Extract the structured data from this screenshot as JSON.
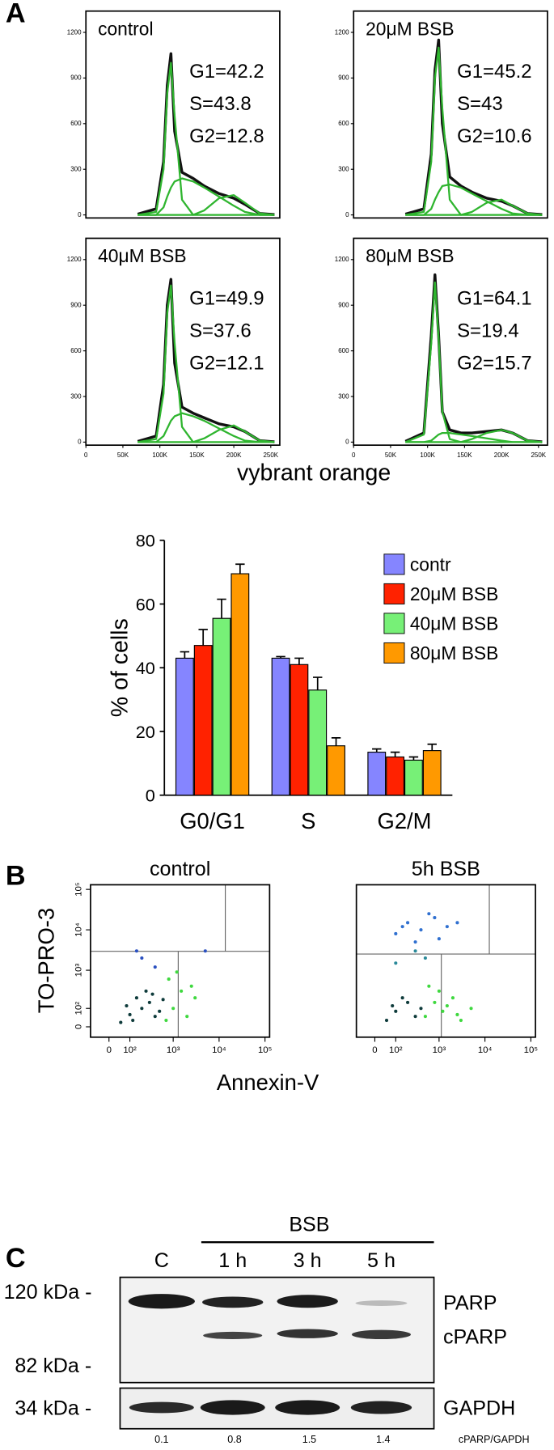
{
  "panels": [
    "A",
    "B",
    "C"
  ],
  "chart_data": [
    {
      "type": "line",
      "title": "control",
      "annotations": [
        "G1=42.2",
        "S=43.8",
        "G2=12.8"
      ],
      "x": [
        70000,
        95000,
        105000,
        110000,
        115000,
        120000,
        130000,
        145000,
        160000,
        180000,
        200000,
        215000,
        235000,
        255000
      ],
      "xlim": [
        0,
        262144
      ],
      "ylim": [
        -20,
        1340
      ],
      "yticks": [
        0,
        300,
        600,
        900,
        1200
      ],
      "series": [
        {
          "color": "#111111",
          "values": [
            5,
            40,
            350,
            850,
            1060,
            550,
            280,
            240,
            190,
            140,
            110,
            70,
            10,
            2
          ]
        },
        {
          "color": "#2fb52f",
          "values": [
            0,
            20,
            300,
            800,
            1000,
            650,
            100,
            0,
            0,
            0,
            0,
            0,
            0,
            0
          ]
        },
        {
          "color": "#2fb52f",
          "values": [
            0,
            0,
            50,
            120,
            180,
            220,
            240,
            220,
            180,
            120,
            60,
            20,
            0,
            0
          ]
        },
        {
          "color": "#2fb52f",
          "values": [
            0,
            0,
            0,
            0,
            0,
            0,
            0,
            0,
            30,
            110,
            130,
            80,
            10,
            0
          ]
        }
      ]
    },
    {
      "type": "line",
      "title": "20μM BSB",
      "annotations": [
        "G1=45.2",
        "S=43",
        "G2=10.6"
      ],
      "x": [
        70000,
        95000,
        105000,
        110000,
        115000,
        120000,
        130000,
        145000,
        160000,
        180000,
        200000,
        215000,
        235000,
        255000
      ],
      "xlim": [
        0,
        262144
      ],
      "ylim": [
        -20,
        1340
      ],
      "yticks": [
        0,
        300,
        600,
        900,
        1200
      ],
      "series": [
        {
          "color": "#111111",
          "values": [
            5,
            40,
            400,
            950,
            1150,
            600,
            250,
            190,
            150,
            110,
            90,
            60,
            10,
            2
          ]
        },
        {
          "color": "#2fb52f",
          "values": [
            0,
            20,
            350,
            900,
            1100,
            700,
            100,
            0,
            0,
            0,
            0,
            0,
            0,
            0
          ]
        },
        {
          "color": "#2fb52f",
          "values": [
            0,
            0,
            40,
            100,
            150,
            190,
            200,
            180,
            140,
            90,
            40,
            10,
            0,
            0
          ]
        },
        {
          "color": "#2fb52f",
          "values": [
            0,
            0,
            0,
            0,
            0,
            0,
            0,
            0,
            20,
            80,
            100,
            60,
            10,
            0
          ]
        }
      ]
    },
    {
      "type": "line",
      "title": "40μM BSB",
      "annotations": [
        "G1=49.9",
        "S=37.6",
        "G2=12.1"
      ],
      "xlabel": "vybrant orange",
      "x": [
        70000,
        95000,
        105000,
        110000,
        115000,
        120000,
        130000,
        145000,
        160000,
        180000,
        200000,
        215000,
        235000,
        255000
      ],
      "xlim": [
        0,
        262144
      ],
      "ylim": [
        -20,
        1340
      ],
      "yticks": [
        0,
        300,
        600,
        900,
        1200
      ],
      "xticks": [
        0,
        {
          "value": 50000,
          "label": "50K"
        },
        {
          "value": 100000,
          "label": "100K"
        },
        {
          "value": 150000,
          "label": "150K"
        },
        {
          "value": 200000,
          "label": "200K"
        },
        {
          "value": 250000,
          "label": "250K"
        }
      ],
      "series": [
        {
          "color": "#111111",
          "values": [
            5,
            40,
            380,
            900,
            1070,
            520,
            230,
            190,
            160,
            120,
            100,
            70,
            10,
            2
          ]
        },
        {
          "color": "#2fb52f",
          "values": [
            0,
            20,
            320,
            850,
            1030,
            650,
            100,
            0,
            0,
            0,
            0,
            0,
            0,
            0
          ]
        },
        {
          "color": "#2fb52f",
          "values": [
            0,
            0,
            40,
            90,
            140,
            170,
            190,
            170,
            140,
            90,
            40,
            10,
            0,
            0
          ]
        },
        {
          "color": "#2fb52f",
          "values": [
            0,
            0,
            0,
            0,
            0,
            0,
            0,
            0,
            25,
            80,
            110,
            70,
            10,
            0
          ]
        }
      ]
    },
    {
      "type": "line",
      "title": "80μM BSB",
      "annotations": [
        "G1=64.1",
        "S=19.4",
        "G2=15.7"
      ],
      "x": [
        70000,
        95000,
        105000,
        110000,
        115000,
        120000,
        130000,
        145000,
        160000,
        180000,
        200000,
        215000,
        235000,
        255000
      ],
      "xlim": [
        0,
        262144
      ],
      "ylim": [
        -20,
        1340
      ],
      "yticks": [
        0,
        300,
        600,
        900,
        1200
      ],
      "xticks": [
        0,
        {
          "value": 50000,
          "label": "50K"
        },
        {
          "value": 100000,
          "label": "100K"
        },
        {
          "value": 150000,
          "label": "150K"
        },
        {
          "value": 200000,
          "label": "200K"
        },
        {
          "value": 250000,
          "label": "250K"
        }
      ],
      "series": [
        {
          "color": "#111111",
          "values": [
            5,
            60,
            700,
            1100,
            700,
            200,
            80,
            60,
            60,
            70,
            80,
            60,
            10,
            2
          ]
        },
        {
          "color": "#2fb52f",
          "values": [
            0,
            50,
            650,
            1050,
            680,
            200,
            20,
            0,
            0,
            0,
            0,
            0,
            0,
            0
          ]
        },
        {
          "color": "#2fb52f",
          "values": [
            0,
            0,
            10,
            30,
            50,
            60,
            60,
            50,
            40,
            25,
            10,
            0,
            0,
            0
          ]
        },
        {
          "color": "#2fb52f",
          "values": [
            0,
            0,
            0,
            0,
            0,
            0,
            0,
            0,
            20,
            60,
            80,
            60,
            10,
            0
          ]
        }
      ]
    },
    {
      "type": "bar",
      "ylabel": "% of cells",
      "categories": [
        "G0/G1",
        "S",
        "G2/M"
      ],
      "ylim": [
        0,
        80
      ],
      "yticks": [
        0,
        20,
        40,
        60,
        80
      ],
      "legend": "upper right",
      "series": [
        {
          "name": "contr",
          "color": "#8585ff",
          "values": [
            43,
            43,
            13.5
          ],
          "errors": [
            2,
            0.5,
            1
          ]
        },
        {
          "name": "20μM BSB",
          "color": "#ff2200",
          "values": [
            47,
            41,
            12
          ],
          "errors": [
            5,
            2,
            1.5
          ]
        },
        {
          "name": "40μM BSB",
          "color": "#77f077",
          "values": [
            55.5,
            33,
            11
          ],
          "errors": [
            6,
            4,
            1
          ]
        },
        {
          "name": "80μM BSB",
          "color": "#ff9900",
          "values": [
            69.5,
            15.5,
            14
          ],
          "errors": [
            3,
            2.5,
            2
          ]
        }
      ]
    },
    {
      "type": "scatter",
      "title": "control",
      "xlabel": "Annexin-V",
      "ylabel": "TO-PRO-3",
      "xscale": "biexponential",
      "yscale": "biexponential",
      "xlim": [
        -85,
        126000
      ],
      "ylim": [
        -50,
        130000
      ],
      "xticks": [
        0,
        {
          "value": 100,
          "label": "10²"
        },
        {
          "value": 1000,
          "label": "10³"
        },
        {
          "value": 10000,
          "label": "10⁴"
        },
        {
          "value": 100000,
          "label": "10⁵"
        }
      ],
      "yticks": [
        0,
        {
          "value": 100,
          "label": "10²"
        },
        {
          "value": 1000,
          "label": "10³"
        },
        {
          "value": 10000,
          "label": "10⁴"
        },
        {
          "value": 100000,
          "label": "10⁵"
        }
      ],
      "series": [
        {
          "color": "#0e3b3b",
          "x": [
            50,
            100,
            200,
            300,
            150,
            400,
            250,
            80,
            500,
            350,
            120,
            600
          ],
          "y": [
            20,
            60,
            100,
            150,
            200,
            50,
            300,
            120,
            80,
            250,
            30,
            180
          ]
        },
        {
          "color": "#3fd83f",
          "x": [
            1000,
            1500,
            2000,
            800,
            3000,
            1200,
            2500,
            700
          ],
          "y": [
            100,
            300,
            50,
            600,
            200,
            900,
            400,
            30
          ]
        },
        {
          "color": "#2a50c0",
          "x": [
            200,
            400,
            150,
            5000
          ],
          "y": [
            2000,
            1200,
            3000,
            3000
          ]
        }
      ]
    },
    {
      "type": "scatter",
      "title": "5h BSB",
      "xscale": "biexponential",
      "yscale": "biexponential",
      "xlim": [
        -85,
        126000
      ],
      "ylim": [
        -50,
        130000
      ],
      "xticks": [
        0,
        {
          "value": 100,
          "label": "10²"
        },
        {
          "value": 1000,
          "label": "10³"
        },
        {
          "value": 10000,
          "label": "10⁴"
        },
        {
          "value": 100000,
          "label": "10⁵"
        }
      ],
      "series": [
        {
          "color": "#0e3b3b",
          "x": [
            50,
            100,
            200,
            300,
            150,
            400,
            80
          ],
          "y": [
            30,
            80,
            150,
            50,
            200,
            100,
            120
          ]
        },
        {
          "color": "#3fd83f",
          "x": [
            500,
            800,
            1200,
            2000,
            3000,
            1000,
            1500,
            600,
            5000,
            2500
          ],
          "y": [
            50,
            150,
            80,
            200,
            30,
            300,
            120,
            400,
            100,
            60
          ]
        },
        {
          "color": "#3070d0",
          "x": [
            100,
            200,
            400,
            800,
            1500,
            300,
            600,
            2500,
            1000,
            150
          ],
          "y": [
            8000,
            15000,
            10000,
            20000,
            12000,
            5000,
            25000,
            15000,
            6000,
            12000
          ]
        },
        {
          "color": "#2b8a9a",
          "x": [
            100,
            300,
            500
          ],
          "y": [
            1500,
            3000,
            2000
          ]
        }
      ]
    }
  ],
  "blot": {
    "group_label": "BSB",
    "lanes": [
      "C",
      "1 h",
      "3 h",
      "5 h"
    ],
    "markers": [
      "120 kDa -",
      "82 kDa -",
      "34 kDa -"
    ],
    "bands": [
      "PARP",
      "cPARP",
      "GAPDH"
    ],
    "ratios": [
      0.1,
      0.8,
      1.5,
      1.4
    ],
    "ratio_label": "cPARP/GAPDH"
  }
}
